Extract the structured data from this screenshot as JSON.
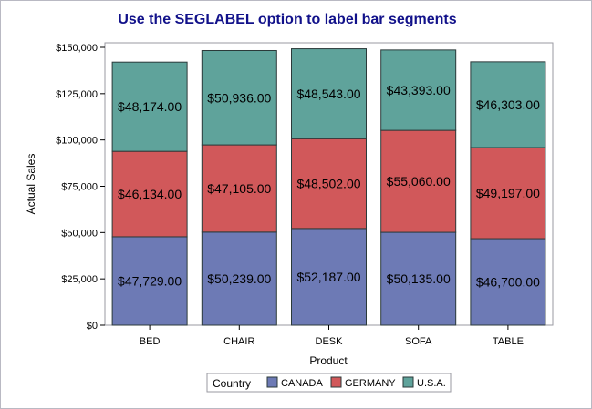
{
  "chart_data": {
    "type": "bar",
    "stacked": true,
    "title": "Use the SEGLABEL option to label bar segments",
    "xlabel": "Product",
    "ylabel": "Actual Sales",
    "categories": [
      "BED",
      "CHAIR",
      "DESK",
      "SOFA",
      "TABLE"
    ],
    "ylim": [
      0,
      150000
    ],
    "yticks": [
      0,
      25000,
      50000,
      75000,
      100000,
      125000,
      150000
    ],
    "ytick_labels": [
      "$0",
      "$25,000",
      "$50,000",
      "$75,000",
      "$100,000",
      "$125,000",
      "$150,000"
    ],
    "series": [
      {
        "name": "CANADA",
        "color": "#6d7ab5",
        "values": [
          47729,
          50239,
          52187,
          50135,
          46700
        ],
        "labels": [
          "$47,729.00",
          "$50,239.00",
          "$52,187.00",
          "$50,135.00",
          "$46,700.00"
        ]
      },
      {
        "name": "GERMANY",
        "color": "#d1585a",
        "values": [
          46134,
          47105,
          48502,
          55060,
          49197
        ],
        "labels": [
          "$46,134.00",
          "$47,105.00",
          "$48,502.00",
          "$55,060.00",
          "$49,197.00"
        ]
      },
      {
        "name": "U.S.A.",
        "color": "#5fa39b",
        "values": [
          48174,
          50936,
          48543,
          43393,
          46303
        ],
        "labels": [
          "$48,174.00",
          "$50,936.00",
          "$48,543.00",
          "$43,393.00",
          "$46,303.00"
        ]
      }
    ],
    "legend_title": "Country",
    "legend_position": "bottom",
    "grid": false
  }
}
